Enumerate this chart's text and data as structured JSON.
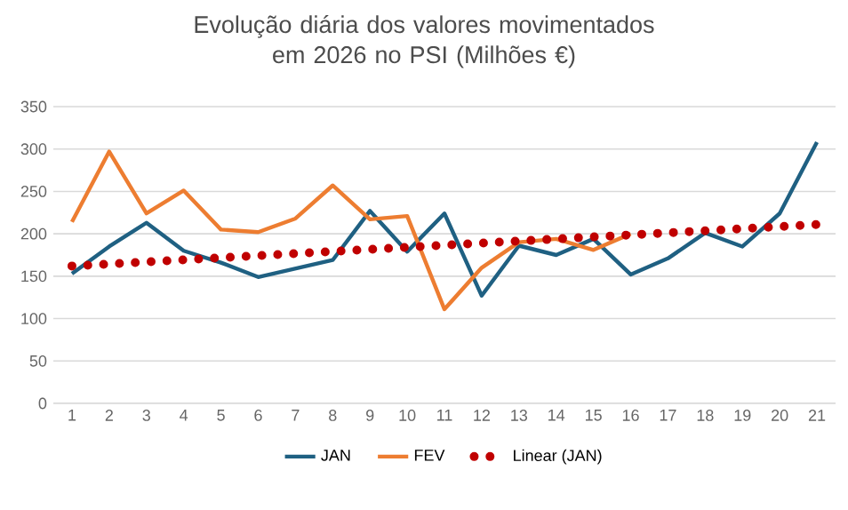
{
  "chart_data": {
    "type": "line",
    "title": "Evolução diária dos valores movimentados em 2026 no PSI (Milhões €)",
    "x": [
      1,
      2,
      3,
      4,
      5,
      6,
      7,
      8,
      9,
      10,
      11,
      12,
      13,
      14,
      15,
      16,
      17,
      18,
      19,
      20,
      21
    ],
    "xlim": [
      0.5,
      21.5
    ],
    "xticks": [
      1,
      2,
      3,
      4,
      5,
      6,
      7,
      8,
      9,
      10,
      11,
      12,
      13,
      14,
      15,
      16,
      17,
      18,
      19,
      20,
      21
    ],
    "ylim": [
      0,
      350
    ],
    "yticks": [
      0,
      50,
      100,
      150,
      200,
      250,
      300,
      350
    ],
    "grid": "y",
    "legend": "bottom",
    "series": [
      {
        "name": "JAN",
        "color": "#1f6082",
        "values": [
          153,
          185,
          213,
          180,
          166,
          149,
          159,
          169,
          227,
          179,
          224,
          127,
          186,
          175,
          194,
          152,
          171,
          201,
          185,
          224,
          308
        ]
      },
      {
        "name": "FEV",
        "color": "#ed7d31",
        "values": [
          214,
          297,
          224,
          251,
          205,
          202,
          218,
          257,
          217,
          221,
          111,
          160,
          190,
          194,
          181,
          200,
          null,
          null,
          null,
          null,
          null
        ]
      },
      {
        "name": "Linear (JAN)",
        "color": "#c00000",
        "line_style": "dotted",
        "x": [
          1,
          21
        ],
        "values": [
          162,
          211
        ]
      }
    ]
  }
}
